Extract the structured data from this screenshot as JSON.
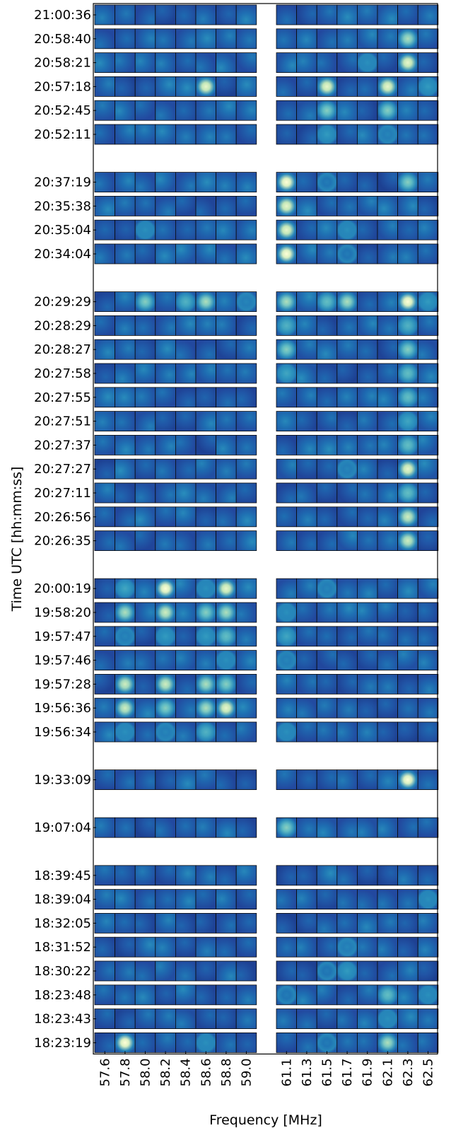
{
  "chart_data": {
    "type": "heatmap",
    "xlabel": "Frequency [MHz]",
    "ylabel": "Time UTC [hh:mm:ss]",
    "frequencies_left": [
      "57.6",
      "57.8",
      "58.0",
      "58.2",
      "58.4",
      "58.6",
      "58.8",
      "59.0"
    ],
    "frequencies_right": [
      "61.1",
      "61.3",
      "61.5",
      "61.7",
      "61.9",
      "62.1",
      "62.3",
      "62.5"
    ],
    "groups": [
      [
        "21:00:36",
        "20:58:40",
        "20:58:21",
        "20:57:18",
        "20:52:45",
        "20:52:11"
      ],
      [
        "20:37:19",
        "20:35:38",
        "20:35:04",
        "20:34:04"
      ],
      [
        "20:29:29",
        "20:28:29",
        "20:28:27",
        "20:27:58",
        "20:27:55",
        "20:27:51",
        "20:27:37",
        "20:27:27",
        "20:27:11",
        "20:26:56",
        "20:26:35"
      ],
      [
        "20:00:19",
        "19:58:20",
        "19:57:47",
        "19:57:46",
        "19:57:28",
        "19:56:36",
        "19:56:34"
      ],
      [
        "19:33:09"
      ],
      [
        "19:07:04"
      ],
      [
        "18:39:45",
        "18:39:04",
        "18:32:05",
        "18:31:52",
        "18:30:22",
        "18:23:48",
        "18:23:43",
        "18:23:19"
      ]
    ],
    "bright_cells": {
      "20:58:40": [
        [
          14,
          0.85
        ]
      ],
      "20:58:21": [
        [
          14,
          0.95
        ],
        [
          12,
          0.55
        ]
      ],
      "20:57:18": [
        [
          5,
          0.95
        ],
        [
          10,
          0.95
        ],
        [
          13,
          0.95
        ],
        [
          15,
          0.6
        ]
      ],
      "20:52:45": [
        [
          10,
          0.8
        ],
        [
          13,
          0.8
        ]
      ],
      "20:52:11": [
        [
          10,
          0.6
        ],
        [
          13,
          0.5
        ]
      ],
      "20:37:19": [
        [
          8,
          1.0
        ],
        [
          14,
          0.8
        ],
        [
          10,
          0.45
        ]
      ],
      "20:35:38": [
        [
          8,
          0.95
        ]
      ],
      "20:35:04": [
        [
          8,
          0.95
        ],
        [
          2,
          0.55
        ],
        [
          11,
          0.55
        ]
      ],
      "20:34:04": [
        [
          8,
          1.0
        ],
        [
          11,
          0.45
        ]
      ],
      "20:29:29": [
        [
          2,
          0.8
        ],
        [
          4,
          0.7
        ],
        [
          5,
          0.85
        ],
        [
          7,
          0.5
        ],
        [
          8,
          0.85
        ],
        [
          10,
          0.75
        ],
        [
          11,
          0.85
        ],
        [
          14,
          1.0
        ],
        [
          15,
          0.6
        ]
      ],
      "20:28:29": [
        [
          8,
          0.7
        ],
        [
          14,
          0.7
        ]
      ],
      "20:28:27": [
        [
          8,
          0.8
        ],
        [
          14,
          0.8
        ]
      ],
      "20:27:58": [
        [
          8,
          0.65
        ],
        [
          14,
          0.75
        ]
      ],
      "20:27:55": [
        [
          14,
          0.75
        ]
      ],
      "20:27:51": [
        [
          14,
          0.65
        ]
      ],
      "20:27:37": [
        [
          14,
          0.75
        ]
      ],
      "20:27:27": [
        [
          14,
          0.95
        ],
        [
          11,
          0.5
        ]
      ],
      "20:27:11": [
        [
          14,
          0.75
        ]
      ],
      "20:26:56": [
        [
          14,
          0.9
        ]
      ],
      "20:26:35": [
        [
          14,
          0.9
        ]
      ],
      "20:00:19": [
        [
          1,
          0.65
        ],
        [
          3,
          1.0
        ],
        [
          5,
          0.55
        ],
        [
          6,
          0.95
        ],
        [
          10,
          0.5
        ]
      ],
      "19:58:20": [
        [
          1,
          0.85
        ],
        [
          3,
          0.9
        ],
        [
          5,
          0.8
        ],
        [
          6,
          0.85
        ],
        [
          8,
          0.55
        ]
      ],
      "19:57:47": [
        [
          1,
          0.5
        ],
        [
          3,
          0.6
        ],
        [
          5,
          0.6
        ],
        [
          6,
          0.75
        ],
        [
          8,
          0.65
        ]
      ],
      "19:57:46": [
        [
          6,
          0.55
        ],
        [
          8,
          0.5
        ]
      ],
      "19:57:28": [
        [
          1,
          0.9
        ],
        [
          3,
          0.9
        ],
        [
          5,
          0.85
        ],
        [
          6,
          0.8
        ]
      ],
      "19:56:36": [
        [
          1,
          0.9
        ],
        [
          3,
          0.8
        ],
        [
          5,
          0.85
        ],
        [
          6,
          0.95
        ]
      ],
      "19:56:34": [
        [
          1,
          0.55
        ],
        [
          3,
          0.5
        ],
        [
          5,
          0.7
        ],
        [
          8,
          0.55
        ]
      ],
      "19:33:09": [
        [
          14,
          1.0
        ]
      ],
      "19:07:04": [
        [
          8,
          0.8
        ]
      ],
      "18:39:04": [
        [
          15,
          0.55
        ]
      ],
      "18:31:52": [
        [
          11,
          0.5
        ]
      ],
      "18:30:22": [
        [
          11,
          0.6
        ],
        [
          10,
          0.45
        ]
      ],
      "18:23:48": [
        [
          13,
          0.75
        ],
        [
          8,
          0.45
        ],
        [
          15,
          0.55
        ]
      ],
      "18:23:43": [
        [
          13,
          0.55
        ]
      ],
      "18:23:19": [
        [
          1,
          1.0
        ],
        [
          5,
          0.55
        ],
        [
          13,
          0.85
        ],
        [
          10,
          0.45
        ]
      ]
    }
  }
}
